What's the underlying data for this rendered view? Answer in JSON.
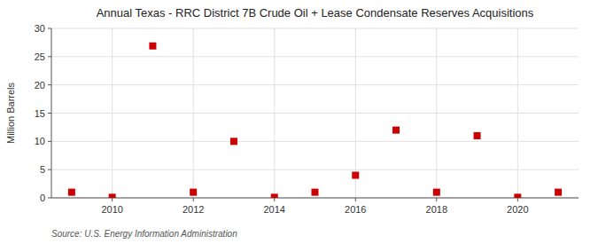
{
  "chart_data": {
    "type": "scatter",
    "title": "Annual Texas - RRC District 7B Crude Oil + Lease Condensate Reserves Acquisitions",
    "ylabel": "Million Barrels",
    "annotation": "Source: U.S. Energy Information Administration",
    "x": [
      2009,
      2010,
      2011,
      2012,
      2013,
      2014,
      2015,
      2016,
      2017,
      2018,
      2019,
      2020,
      2021
    ],
    "values": [
      1.0,
      0.1,
      26.9,
      1.0,
      10.0,
      0.1,
      1.0,
      4.0,
      12.0,
      1.0,
      11.0,
      0.1,
      1.0
    ],
    "color": "#cc0000",
    "marker": "square",
    "xlim": [
      2008.5,
      2021.5
    ],
    "xticks": [
      2010,
      2012,
      2014,
      2016,
      2018,
      2020
    ],
    "ylim": [
      0,
      30
    ],
    "yticks": [
      0,
      5,
      10,
      15,
      20,
      25,
      30
    ],
    "grid": true
  }
}
